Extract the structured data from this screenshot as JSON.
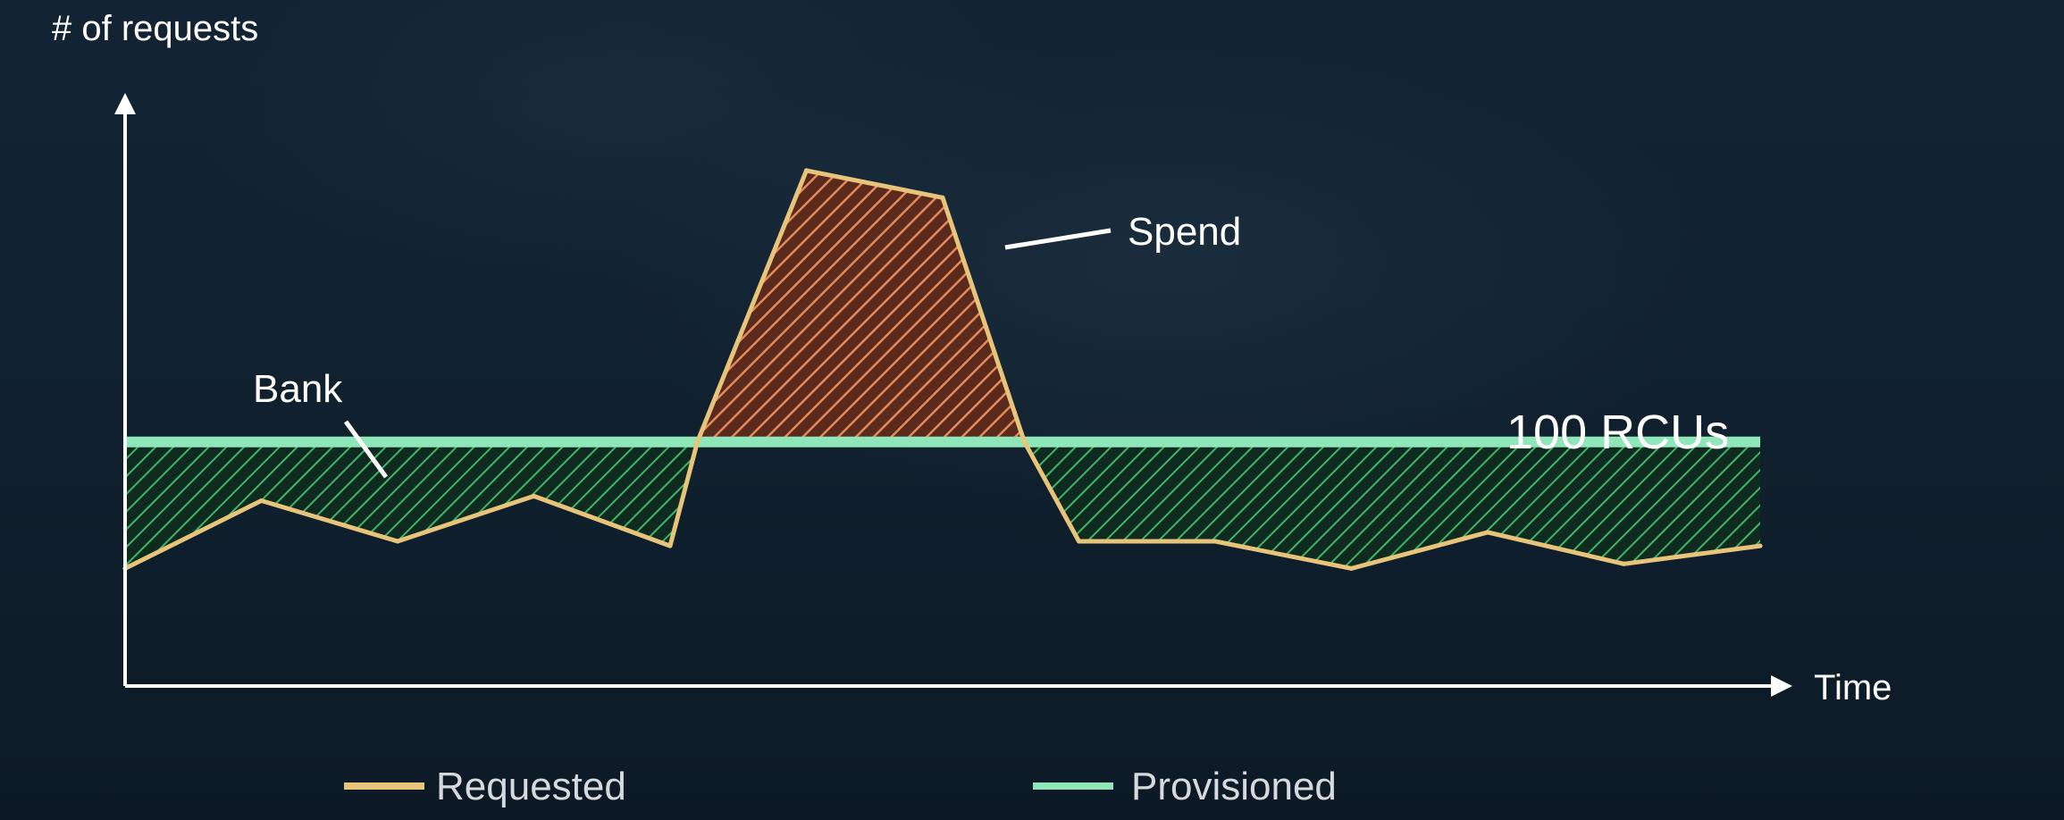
{
  "chart_data": {
    "type": "area",
    "ylabel": "# of requests",
    "xlabel": "Time",
    "x": [
      0,
      1,
      2,
      3,
      4,
      4.2,
      5,
      6,
      6.6,
      7,
      8,
      9,
      10,
      11,
      12
    ],
    "series": [
      {
        "name": "Requested",
        "values": [
          72,
          87,
          78,
          88,
          77,
          100,
          160,
          154,
          100,
          78,
          78,
          72,
          80,
          73,
          77
        ]
      },
      {
        "name": "Provisioned",
        "values": [
          100,
          100,
          100,
          100,
          100,
          100,
          100,
          100,
          100,
          100,
          100,
          100,
          100,
          100,
          100
        ]
      }
    ],
    "xlim": [
      0,
      12
    ],
    "ylim": [
      46,
      175
    ],
    "annotations": {
      "spend": "Spend",
      "bank": "Bank",
      "provisioned_level": "100 RCUs"
    },
    "legend": [
      "Requested",
      "Provisioned"
    ],
    "legend_position": "bottom",
    "grid": false
  },
  "colors": {
    "background": "#10202e",
    "requested": "#e8c47a",
    "provisioned": "#8fe6b8",
    "spend_hatch": "#e48a5a",
    "bank_hatch": "#3fb56a",
    "axis": "#ffffff"
  }
}
